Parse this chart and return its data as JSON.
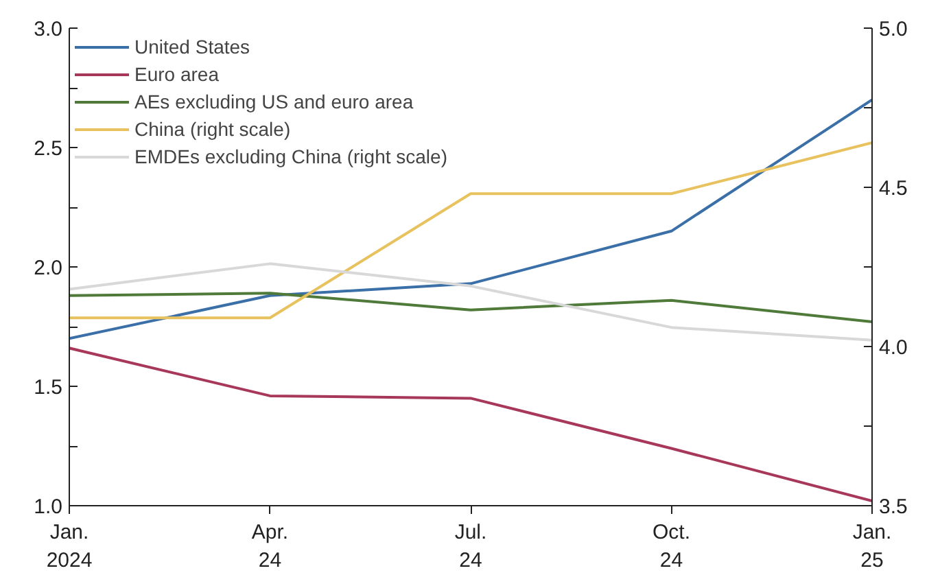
{
  "chart_data": {
    "type": "line",
    "categories": [
      "Jan.\n2024",
      "Apr.\n24",
      "Jul.\n24",
      "Oct.\n24",
      "Jan.\n25"
    ],
    "series": [
      {
        "name": "United States",
        "color": "#3a6fa8",
        "values": [
          1.7,
          1.88,
          1.93,
          2.15,
          2.7
        ]
      },
      {
        "name": "Euro area",
        "color": "#a8385a",
        "values": [
          1.66,
          1.46,
          1.45,
          1.24,
          1.02
        ]
      },
      {
        "name": "AEs excluding US and euro area",
        "color": "#4f7a3a",
        "values": [
          1.88,
          1.89,
          1.82,
          1.86,
          1.77
        ]
      },
      {
        "name": "China (right scale)",
        "color": "#e8c25e",
        "axis": "y2",
        "values": [
          4.09,
          4.09,
          4.48,
          4.48,
          4.64
        ]
      },
      {
        "name": "EMDEs excluding China (right scale)",
        "color": "#d8d8d8",
        "axis": "y2",
        "values": [
          4.18,
          4.26,
          4.19,
          4.06,
          4.02
        ]
      }
    ],
    "ylim": [
      1.0,
      3.0
    ],
    "yticks": [
      {
        "value": 1,
        "label": "1.0"
      },
      {
        "value": 1.25,
        "label": null
      },
      {
        "value": 1.5,
        "label": "1.5"
      },
      {
        "value": 1.75,
        "label": null
      },
      {
        "value": 2,
        "label": "2.0"
      },
      {
        "value": 2.25,
        "label": null
      },
      {
        "value": 2.5,
        "label": "2.5"
      },
      {
        "value": 2.75,
        "label": null
      },
      {
        "value": 3,
        "label": "3.0"
      }
    ],
    "y2lim": [
      3.5,
      5.0
    ],
    "y2ticks": [
      {
        "value": 3.5,
        "label": "3.5"
      },
      {
        "value": 3.75,
        "label": null
      },
      {
        "value": 4,
        "label": "4.0"
      },
      {
        "value": 4.25,
        "label": null
      },
      {
        "value": 4.5,
        "label": "4.5"
      },
      {
        "value": 4.75,
        "label": null
      },
      {
        "value": 5,
        "label": "5.0"
      }
    ],
    "legend": "top left",
    "grid": false,
    "marker": "none",
    "line_style": "solid"
  }
}
